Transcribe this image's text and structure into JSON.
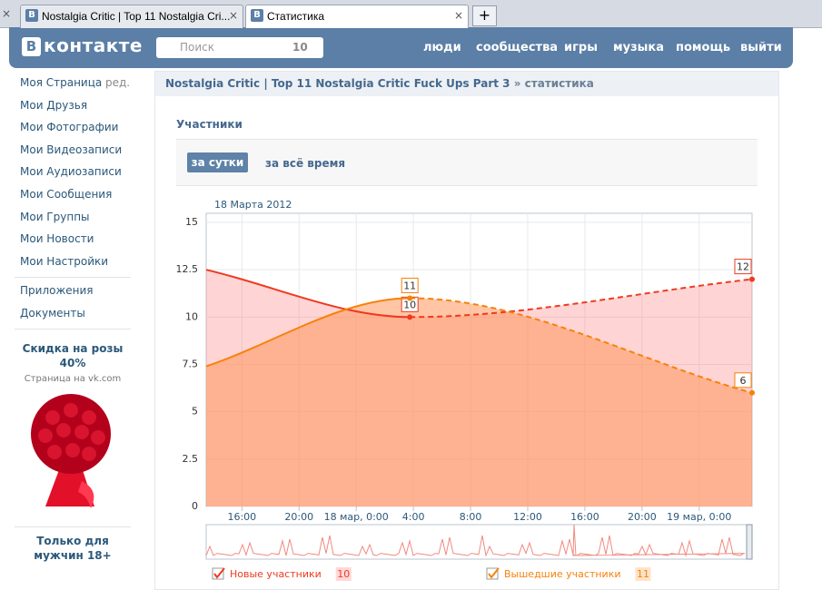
{
  "browser": {
    "tabs": [
      "Nostalgia Critic | Top 11 Nostalgia Cri...",
      "Статистика"
    ]
  },
  "header": {
    "logo_icon": "В",
    "logo": "контакте",
    "search_placeholder": "Поиск",
    "search_count": 10,
    "nav": [
      "люди",
      "сообщества",
      "игры",
      "музыка",
      "помощь",
      "выйти"
    ]
  },
  "sidebar": {
    "menu": [
      "Моя Страница",
      "Мои Друзья",
      "Мои Фотографии",
      "Мои Видеозаписи",
      "Мои Аудиозаписи",
      "Мои Сообщения",
      "Мои Группы",
      "Мои Новости",
      "Мои Настройки"
    ],
    "edit": "ред.",
    "extra": [
      "Приложения",
      "Документы"
    ],
    "ad1": {
      "title": "Скидка на розы 40%",
      "subtitle": "Страница на vk.com"
    },
    "ad2": {
      "title": "Только для мужчин 18+"
    }
  },
  "breadcrumb": {
    "group": "Nostalgia Critic | Top 11 Nostalgia Critic Fuck Ups Part 3",
    "page": "» статистика"
  },
  "section_title": "Участники",
  "tabs": [
    "за сутки",
    "за всё время"
  ],
  "chart_data": {
    "type": "line",
    "subtitle": "18 Марта 2012",
    "x": [
      -10.5,
      3.75,
      27.7
    ],
    "series": [
      {
        "name": "Новые участники",
        "color": "#ee3a20",
        "fill": "rgba(255,120,120,0.32)",
        "badge": 10,
        "values": [
          12.5,
          10,
          12
        ],
        "value_labels": [
          null,
          "10",
          "12"
        ]
      },
      {
        "name": "Вышедшие участники",
        "color": "#f5820a",
        "fill": "rgba(255,150,90,0.55)",
        "badge": 11,
        "values": [
          7.4,
          11,
          6
        ],
        "value_labels": [
          null,
          "11",
          "6"
        ]
      }
    ],
    "xlim": [
      -10.5,
      27.7
    ],
    "xticks": [
      {
        "value": -8,
        "label": "16:00"
      },
      {
        "value": -4,
        "label": "20:00"
      },
      {
        "value": 0,
        "label": "18 мар, 0:00"
      },
      {
        "value": 4,
        "label": "4:00"
      },
      {
        "value": 8,
        "label": "8:00"
      },
      {
        "value": 12,
        "label": "12:00"
      },
      {
        "value": 16,
        "label": "16:00"
      },
      {
        "value": 20,
        "label": "20:00"
      },
      {
        "value": 24,
        "label": "19 мар, 0:00"
      }
    ],
    "ylim": [
      0,
      15
    ],
    "yticks": [
      0,
      2.5,
      5,
      7.5,
      10,
      12.5,
      15
    ],
    "grid": true
  }
}
